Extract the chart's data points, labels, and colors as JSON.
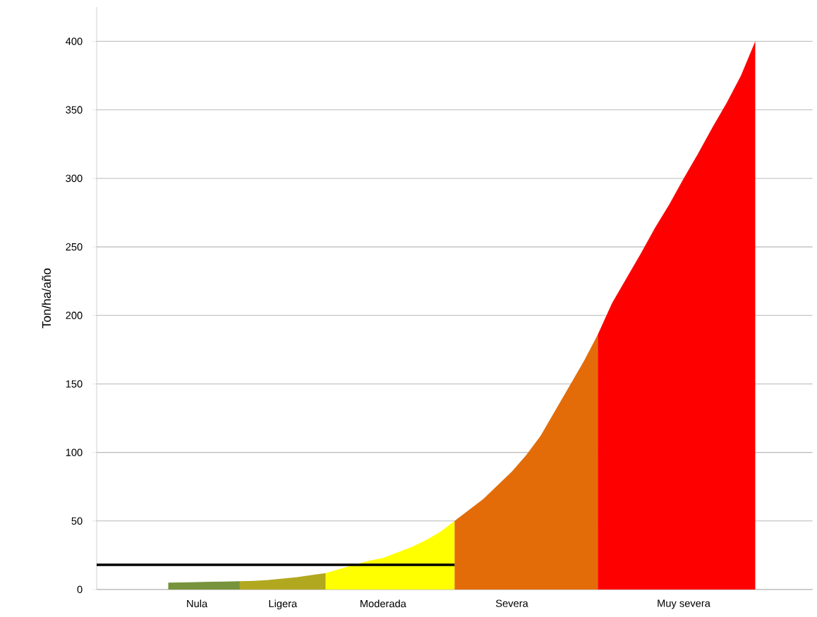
{
  "chart_data": {
    "type": "area",
    "ylabel": "Ton/ha/año",
    "categories": [
      null,
      null,
      null,
      null,
      null,
      null,
      null,
      "Nula",
      null,
      null,
      null,
      null,
      null,
      "Ligera",
      null,
      null,
      null,
      null,
      null,
      null,
      "Moderada",
      null,
      null,
      null,
      null,
      null,
      null,
      null,
      null,
      "Severa",
      null,
      null,
      null,
      null,
      null,
      null,
      null,
      null,
      null,
      null,
      null,
      "Muy severa",
      null,
      null,
      null,
      null,
      null,
      null,
      null,
      null,
      null
    ],
    "series": [
      {
        "color": "#77933c",
        "values": [
          null,
          null,
          null,
          null,
          null,
          5,
          5.2,
          5.4,
          5.6,
          5.8,
          6,
          null,
          null,
          null,
          null,
          null,
          null,
          null,
          null,
          null,
          null,
          null,
          null,
          null,
          null,
          null,
          null,
          null,
          null,
          null,
          null,
          null,
          null,
          null,
          null,
          null,
          null,
          null,
          null,
          null,
          null,
          null,
          null,
          null,
          null,
          null,
          null,
          null,
          null,
          null,
          null
        ]
      },
      {
        "color": "#b2a81f",
        "values": [
          null,
          null,
          null,
          null,
          null,
          null,
          null,
          null,
          null,
          null,
          6,
          6.3,
          7,
          8,
          9,
          10.5,
          12,
          null,
          null,
          null,
          null,
          null,
          null,
          null,
          null,
          null,
          null,
          null,
          null,
          null,
          null,
          null,
          null,
          null,
          null,
          null,
          null,
          null,
          null,
          null,
          null,
          null,
          null,
          null,
          null,
          null,
          null,
          null,
          null,
          null,
          null
        ]
      },
      {
        "color": "#ffff00",
        "values": [
          null,
          null,
          null,
          null,
          null,
          null,
          null,
          null,
          null,
          null,
          null,
          null,
          null,
          null,
          null,
          null,
          12,
          15,
          18,
          21,
          23,
          27,
          31,
          36,
          42,
          50,
          null,
          null,
          null,
          null,
          null,
          null,
          null,
          null,
          null,
          null,
          null,
          null,
          null,
          null,
          null,
          null,
          null,
          null,
          null,
          null,
          null,
          null,
          null,
          null,
          null
        ]
      },
      {
        "color": "#e36c09",
        "values": [
          null,
          null,
          null,
          null,
          null,
          null,
          null,
          null,
          null,
          null,
          null,
          null,
          null,
          null,
          null,
          null,
          null,
          null,
          null,
          null,
          null,
          null,
          null,
          null,
          null,
          50,
          58,
          66,
          76,
          86,
          98,
          112,
          130,
          148,
          166,
          186,
          null,
          null,
          null,
          null,
          null,
          null,
          null,
          null,
          null,
          null,
          null,
          null,
          null,
          null,
          null
        ]
      },
      {
        "color": "#ff0000",
        "values": [
          null,
          null,
          null,
          null,
          null,
          null,
          null,
          null,
          null,
          null,
          null,
          null,
          null,
          null,
          null,
          null,
          null,
          null,
          null,
          null,
          null,
          null,
          null,
          null,
          null,
          null,
          null,
          null,
          null,
          null,
          null,
          null,
          null,
          null,
          null,
          186,
          209,
          227,
          245,
          264,
          281,
          300,
          318,
          337,
          355,
          375,
          400,
          null,
          null,
          null,
          null
        ]
      },
      {
        "type": "line",
        "color": "#000000",
        "values": [
          18,
          18,
          18,
          18,
          18,
          18,
          18,
          18,
          18,
          18,
          18,
          18,
          18,
          18,
          18,
          18,
          18,
          18,
          18,
          18,
          18,
          18,
          18,
          18,
          18,
          18,
          null,
          null,
          null,
          null,
          null,
          null,
          null,
          null,
          null,
          null,
          null,
          null,
          null,
          null,
          null,
          null,
          null,
          null,
          null,
          null,
          null,
          null,
          null,
          null,
          null
        ]
      }
    ],
    "ylim": [
      0,
      425
    ],
    "yticks": [
      0,
      50,
      100,
      150,
      200,
      250,
      300,
      350,
      400
    ],
    "grid": "y",
    "marker": "none",
    "line_style": "solid"
  }
}
